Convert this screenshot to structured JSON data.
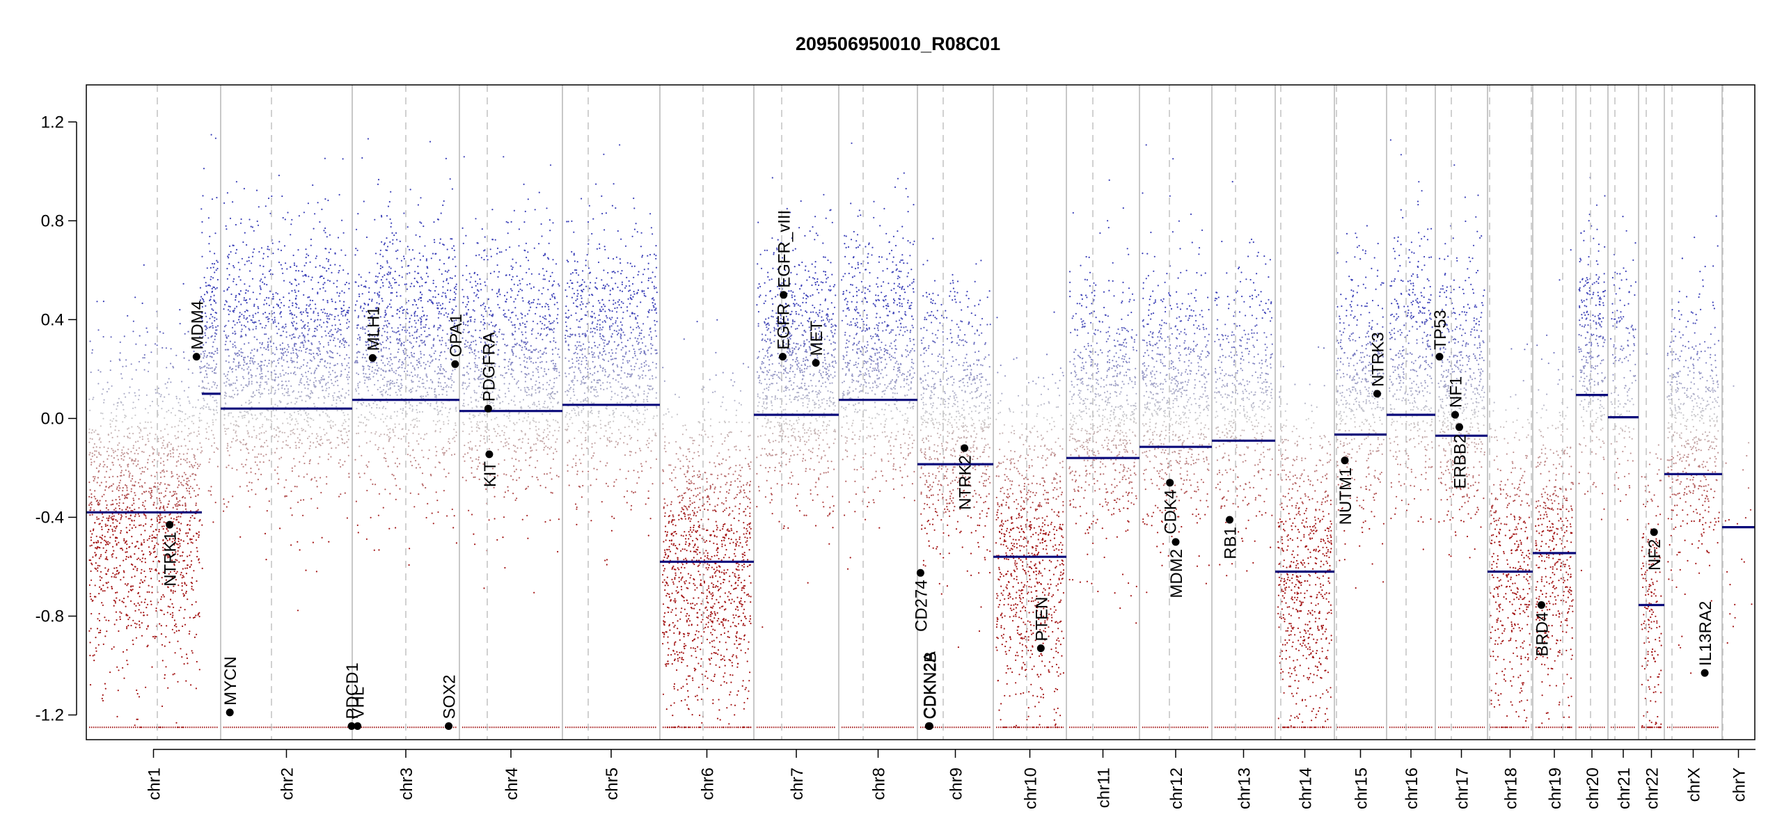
{
  "chart_data": {
    "type": "scatter",
    "title": "209506950010_R08C01",
    "xlabel": "",
    "ylabel": "",
    "ylim": [
      -1.3,
      1.35
    ],
    "yticks": [
      1.2,
      0.8,
      0.4,
      0.0,
      -0.4,
      -0.8,
      -1.2
    ],
    "ytick_labels": [
      "1.2",
      "0.8",
      "0.4",
      "0.0",
      "-0.4",
      "-0.8",
      "-1.2"
    ],
    "grid": false,
    "colors": {
      "gain": "#3b40b8",
      "loss": "#a31414",
      "segment": "#0a0a7a",
      "gene": "#000000",
      "chrom_border": "#b5b5b5",
      "centromere": "#c2c2c2"
    },
    "chromosomes": [
      {
        "name": "chr1",
        "segments": [
          {
            "frac_start": 0.0,
            "frac_end": 0.86,
            "value": -0.38
          },
          {
            "frac_start": 0.86,
            "frac_end": 1.0,
            "value": 0.1
          }
        ],
        "density": 1.0
      },
      {
        "name": "chr2",
        "segments": [
          {
            "frac_start": 0.0,
            "frac_end": 1.0,
            "value": 0.04
          }
        ],
        "density": 0.9
      },
      {
        "name": "chr3",
        "segments": [
          {
            "frac_start": 0.0,
            "frac_end": 1.0,
            "value": 0.075
          }
        ],
        "density": 0.85
      },
      {
        "name": "chr4",
        "segments": [
          {
            "frac_start": 0.0,
            "frac_end": 1.0,
            "value": 0.03
          }
        ],
        "density": 0.8
      },
      {
        "name": "chr5",
        "segments": [
          {
            "frac_start": 0.0,
            "frac_end": 1.0,
            "value": 0.055
          }
        ],
        "density": 0.8
      },
      {
        "name": "chr6",
        "segments": [
          {
            "frac_start": 0.0,
            "frac_end": 1.0,
            "value": -0.58
          }
        ],
        "density": 1.0
      },
      {
        "name": "chr7",
        "segments": [
          {
            "frac_start": 0.0,
            "frac_end": 1.0,
            "value": 0.015
          }
        ],
        "density": 0.9
      },
      {
        "name": "chr8",
        "segments": [
          {
            "frac_start": 0.0,
            "frac_end": 1.0,
            "value": 0.075
          }
        ],
        "density": 0.8
      },
      {
        "name": "chr9",
        "segments": [
          {
            "frac_start": 0.0,
            "frac_end": 1.0,
            "value": -0.185
          }
        ],
        "density": 0.8
      },
      {
        "name": "chr10",
        "segments": [
          {
            "frac_start": 0.0,
            "frac_end": 1.0,
            "value": -0.56
          }
        ],
        "density": 0.95
      },
      {
        "name": "chr11",
        "segments": [
          {
            "frac_start": 0.0,
            "frac_end": 1.0,
            "value": -0.16
          }
        ],
        "density": 0.8
      },
      {
        "name": "chr12",
        "segments": [
          {
            "frac_start": 0.0,
            "frac_end": 1.0,
            "value": -0.115
          }
        ],
        "density": 0.8
      },
      {
        "name": "chr13",
        "segments": [
          {
            "frac_start": 0.0,
            "frac_end": 1.0,
            "value": -0.09
          }
        ],
        "density": 0.6
      },
      {
        "name": "chr14",
        "segments": [
          {
            "frac_start": 0.0,
            "frac_end": 1.0,
            "value": -0.62
          }
        ],
        "density": 0.9
      },
      {
        "name": "chr15",
        "segments": [
          {
            "frac_start": 0.0,
            "frac_end": 1.0,
            "value": -0.065
          }
        ],
        "density": 0.7
      },
      {
        "name": "chr16",
        "segments": [
          {
            "frac_start": 0.0,
            "frac_end": 1.0,
            "value": 0.015
          }
        ],
        "density": 0.7
      },
      {
        "name": "chr17",
        "segments": [
          {
            "frac_start": 0.0,
            "frac_end": 1.0,
            "value": -0.07
          }
        ],
        "density": 0.8
      },
      {
        "name": "chr18",
        "segments": [
          {
            "frac_start": 0.0,
            "frac_end": 1.0,
            "value": -0.62
          }
        ],
        "density": 0.7
      },
      {
        "name": "chr19",
        "segments": [
          {
            "frac_start": 0.0,
            "frac_end": 1.0,
            "value": -0.545
          }
        ],
        "density": 0.8
      },
      {
        "name": "chr20",
        "segments": [
          {
            "frac_start": 0.0,
            "frac_end": 1.0,
            "value": 0.095
          }
        ],
        "density": 0.7
      },
      {
        "name": "chr21",
        "segments": [
          {
            "frac_start": 0.0,
            "frac_end": 1.0,
            "value": 0.005
          }
        ],
        "density": 0.4
      },
      {
        "name": "chr22",
        "segments": [
          {
            "frac_start": 0.0,
            "frac_end": 1.0,
            "value": -0.755
          }
        ],
        "density": 0.6
      },
      {
        "name": "chrX",
        "segments": [
          {
            "frac_start": 0.0,
            "frac_end": 1.0,
            "value": -0.225
          }
        ],
        "density": 0.7
      },
      {
        "name": "chrY",
        "segments": [
          {
            "frac_start": 0.0,
            "frac_end": 1.0,
            "value": -0.44
          }
        ],
        "density": 0.05
      }
    ],
    "genes": [
      {
        "label": "NTRK1",
        "chrom": "chr1",
        "frac": 0.62,
        "value": -0.43,
        "label_side": "below"
      },
      {
        "label": "MDM4",
        "chrom": "chr1",
        "frac": 0.82,
        "value": 0.25,
        "label_side": "above"
      },
      {
        "label": "MYCN",
        "chrom": "chr2",
        "frac": 0.07,
        "value": -1.19,
        "label_side": "above"
      },
      {
        "label": "PDCD1",
        "chrom": "chr2",
        "frac": 0.995,
        "value": -1.245,
        "label_side": "above"
      },
      {
        "label": "VHL",
        "chrom": "chr3",
        "frac": 0.05,
        "value": -1.245,
        "label_side": "above"
      },
      {
        "label": "MLH1",
        "chrom": "chr3",
        "frac": 0.19,
        "value": 0.245,
        "label_side": "above"
      },
      {
        "label": "SOX2",
        "chrom": "chr3",
        "frac": 0.9,
        "value": -1.245,
        "label_side": "above"
      },
      {
        "label": "OPA1",
        "chrom": "chr3",
        "frac": 0.96,
        "value": 0.22,
        "label_side": "above"
      },
      {
        "label": "PDGFRA",
        "chrom": "chr4",
        "frac": 0.28,
        "value": 0.04,
        "label_side": "above"
      },
      {
        "label": "KIT",
        "chrom": "chr4",
        "frac": 0.29,
        "value": -0.145,
        "label_side": "below"
      },
      {
        "label": "EGFR",
        "chrom": "chr7",
        "frac": 0.34,
        "value": 0.25,
        "label_side": "above"
      },
      {
        "label": "EGFR_vIII",
        "chrom": "chr7",
        "frac": 0.35,
        "value": 0.5,
        "label_side": "above"
      },
      {
        "label": "MET",
        "chrom": "chr7",
        "frac": 0.73,
        "value": 0.225,
        "label_side": "above"
      },
      {
        "label": "CD274",
        "chrom": "chr9",
        "frac": 0.04,
        "value": -0.625,
        "label_side": "below"
      },
      {
        "label": "CDKN2A",
        "chrom": "chr9",
        "frac": 0.15,
        "value": -1.245,
        "label_side": "above"
      },
      {
        "label": "CDKN2B",
        "chrom": "chr9",
        "frac": 0.16,
        "value": -1.245,
        "label_side": "above"
      },
      {
        "label": "NTRK2",
        "chrom": "chr9",
        "frac": 0.62,
        "value": -0.12,
        "label_side": "below"
      },
      {
        "label": "PTEN",
        "chrom": "chr10",
        "frac": 0.65,
        "value": -0.93,
        "label_side": "above"
      },
      {
        "label": "CDK4",
        "chrom": "chr12",
        "frac": 0.42,
        "value": -0.26,
        "label_side": "below"
      },
      {
        "label": "MDM2",
        "chrom": "chr12",
        "frac": 0.5,
        "value": -0.5,
        "label_side": "below"
      },
      {
        "label": "RB1",
        "chrom": "chr13",
        "frac": 0.28,
        "value": -0.41,
        "label_side": "below"
      },
      {
        "label": "NUTM1",
        "chrom": "chr15",
        "frac": 0.2,
        "value": -0.17,
        "label_side": "below"
      },
      {
        "label": "NTRK3",
        "chrom": "chr15",
        "frac": 0.82,
        "value": 0.1,
        "label_side": "above"
      },
      {
        "label": "TP53",
        "chrom": "chr17",
        "frac": 0.08,
        "value": 0.25,
        "label_side": "above"
      },
      {
        "label": "NF1",
        "chrom": "chr17",
        "frac": 0.38,
        "value": 0.015,
        "label_side": "above"
      },
      {
        "label": "ERBB2",
        "chrom": "chr17",
        "frac": 0.46,
        "value": -0.035,
        "label_side": "below"
      },
      {
        "label": "BRD4",
        "chrom": "chr19",
        "frac": 0.2,
        "value": -0.755,
        "label_side": "below"
      },
      {
        "label": "NF2",
        "chrom": "chr22",
        "frac": 0.6,
        "value": -0.46,
        "label_side": "below"
      },
      {
        "label": "IL13RA2",
        "chrom": "chrX",
        "frac": 0.7,
        "value": -1.03,
        "label_side": "above"
      }
    ]
  }
}
